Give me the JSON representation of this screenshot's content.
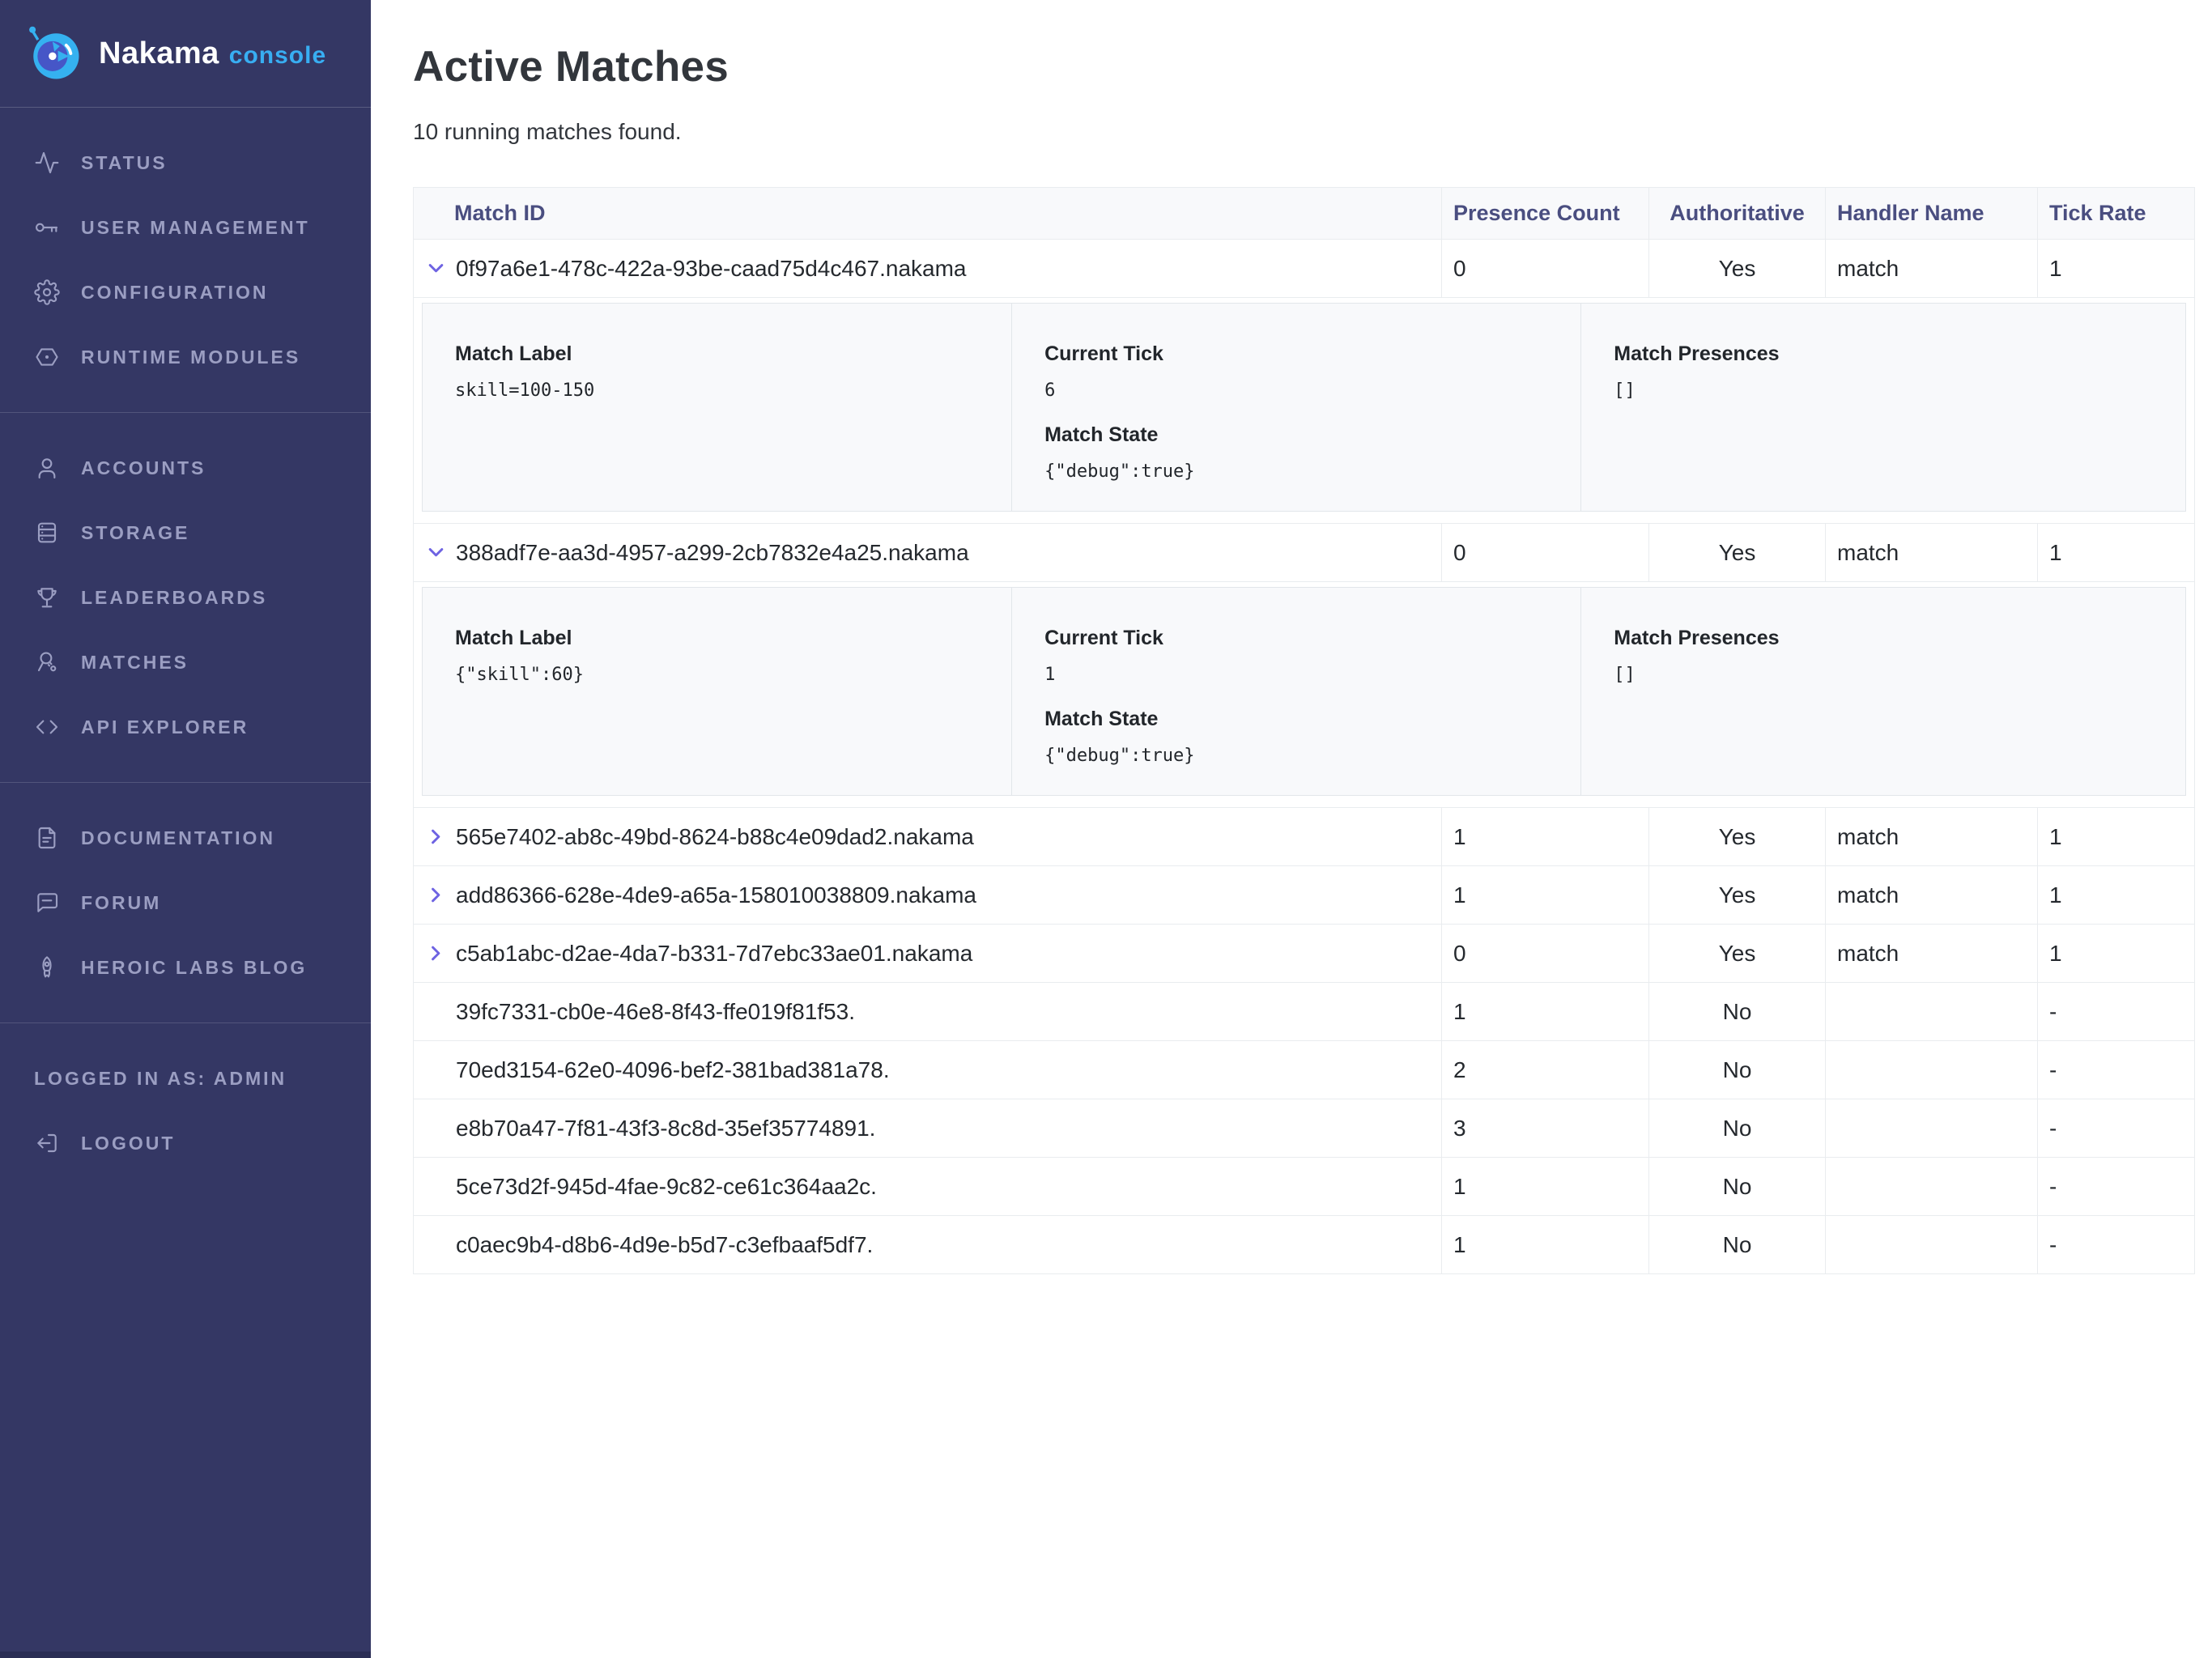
{
  "colors": {
    "sidebar_bg": "#343764",
    "sidebar_text": "#9b9ec2",
    "accent_purple": "#6e63e2",
    "brand_blue": "#38aef2",
    "header_text": "#4a4e80",
    "table_border": "#e9ecef",
    "panel_bg": "#f8f9fb"
  },
  "sidebar": {
    "brand": {
      "name": "Nakama",
      "suffix": "console",
      "logo_icon": "nakama-logo-icon"
    },
    "sections": [
      {
        "items": [
          {
            "icon": "activity-icon",
            "label": "STATUS"
          },
          {
            "icon": "key-icon",
            "label": "USER MANAGEMENT"
          },
          {
            "icon": "gear-icon",
            "label": "CONFIGURATION"
          },
          {
            "icon": "hexagon-icon",
            "label": "RUNTIME MODULES"
          }
        ]
      },
      {
        "items": [
          {
            "icon": "user-icon",
            "label": "ACCOUNTS"
          },
          {
            "icon": "storage-icon",
            "label": "STORAGE"
          },
          {
            "icon": "trophy-icon",
            "label": "LEADERBOARDS"
          },
          {
            "icon": "matches-icon",
            "label": "MATCHES"
          },
          {
            "icon": "code-icon",
            "label": "API EXPLORER"
          }
        ]
      },
      {
        "items": [
          {
            "icon": "document-icon",
            "label": "DOCUMENTATION"
          },
          {
            "icon": "chat-icon",
            "label": "FORUM"
          },
          {
            "icon": "rocket-icon",
            "label": "HEROIC LABS BLOG"
          }
        ]
      },
      {
        "items": [
          {
            "icon": null,
            "label": "LOGGED IN AS: ADMIN",
            "note": true
          },
          {
            "icon": "logout-icon",
            "label": "LOGOUT"
          }
        ]
      }
    ]
  },
  "main": {
    "title": "Active Matches",
    "subtitle": "10 running matches found.",
    "table": {
      "columns": [
        "Match ID",
        "Presence Count",
        "Authoritative",
        "Handler Name",
        "Tick Rate"
      ],
      "detail_labels": {
        "match_label": "Match Label",
        "current_tick": "Current Tick",
        "match_state": "Match State",
        "match_presences": "Match Presences"
      },
      "rows": [
        {
          "match_id": "0f97a6e1-478c-422a-93be-caad75d4c467.nakama",
          "presence_count": "0",
          "authoritative": "Yes",
          "handler_name": "match",
          "tick_rate": "1",
          "chevron": "down",
          "details": {
            "match_label": "skill=100-150",
            "current_tick": "6",
            "match_state": "{\"debug\":true}",
            "match_presences": "[]"
          }
        },
        {
          "match_id": "388adf7e-aa3d-4957-a299-2cb7832e4a25.nakama",
          "presence_count": "0",
          "authoritative": "Yes",
          "handler_name": "match",
          "tick_rate": "1",
          "chevron": "down",
          "details": {
            "match_label": "{\"skill\":60}",
            "current_tick": "1",
            "match_state": "{\"debug\":true}",
            "match_presences": "[]"
          }
        },
        {
          "match_id": "565e7402-ab8c-49bd-8624-b88c4e09dad2.nakama",
          "presence_count": "1",
          "authoritative": "Yes",
          "handler_name": "match",
          "tick_rate": "1",
          "chevron": "right"
        },
        {
          "match_id": "add86366-628e-4de9-a65a-158010038809.nakama",
          "presence_count": "1",
          "authoritative": "Yes",
          "handler_name": "match",
          "tick_rate": "1",
          "chevron": "right"
        },
        {
          "match_id": "c5ab1abc-d2ae-4da7-b331-7d7ebc33ae01.nakama",
          "presence_count": "0",
          "authoritative": "Yes",
          "handler_name": "match",
          "tick_rate": "1",
          "chevron": "right"
        },
        {
          "match_id": "39fc7331-cb0e-46e8-8f43-ffe019f81f53.",
          "presence_count": "1",
          "authoritative": "No",
          "handler_name": "",
          "tick_rate": "-",
          "chevron": null
        },
        {
          "match_id": "70ed3154-62e0-4096-bef2-381bad381a78.",
          "presence_count": "2",
          "authoritative": "No",
          "handler_name": "",
          "tick_rate": "-",
          "chevron": null
        },
        {
          "match_id": "e8b70a47-7f81-43f3-8c8d-35ef35774891.",
          "presence_count": "3",
          "authoritative": "No",
          "handler_name": "",
          "tick_rate": "-",
          "chevron": null
        },
        {
          "match_id": "5ce73d2f-945d-4fae-9c82-ce61c364aa2c.",
          "presence_count": "1",
          "authoritative": "No",
          "handler_name": "",
          "tick_rate": "-",
          "chevron": null
        },
        {
          "match_id": "c0aec9b4-d8b6-4d9e-b5d7-c3efbaaf5df7.",
          "presence_count": "1",
          "authoritative": "No",
          "handler_name": "",
          "tick_rate": "-",
          "chevron": null
        }
      ]
    }
  }
}
